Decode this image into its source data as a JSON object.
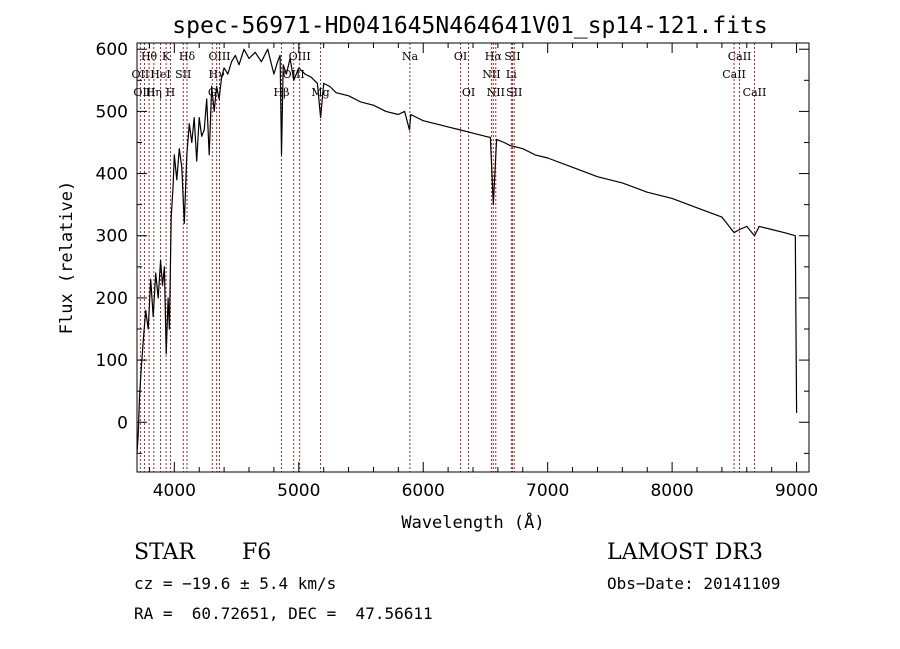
{
  "chart_data": {
    "type": "line",
    "title": "spec-56971-HD041645N464641V01_sp14-121.fits",
    "xlabel": "Wavelength (Å)",
    "ylabel": "Flux (relative)",
    "xlim": [
      3700,
      9100
    ],
    "ylim": [
      -80,
      610
    ],
    "xticks": [
      4000,
      5000,
      6000,
      7000,
      8000,
      9000
    ],
    "yticks": [
      0,
      100,
      200,
      300,
      400,
      500,
      600
    ],
    "grid": false,
    "series": [
      {
        "name": "flux",
        "x": [
          3700,
          3710,
          3720,
          3735,
          3750,
          3770,
          3790,
          3810,
          3830,
          3850,
          3870,
          3890,
          3905,
          3920,
          3935,
          3950,
          3960,
          3975,
          3990,
          4000,
          4020,
          4040,
          4060,
          4080,
          4100,
          4120,
          4140,
          4160,
          4180,
          4200,
          4220,
          4240,
          4260,
          4280,
          4300,
          4320,
          4340,
          4360,
          4380,
          4400,
          4430,
          4460,
          4490,
          4520,
          4560,
          4600,
          4650,
          4700,
          4750,
          4800,
          4830,
          4850,
          4861,
          4875,
          4900,
          4930,
          4960,
          5000,
          5050,
          5100,
          5150,
          5175,
          5200,
          5250,
          5300,
          5400,
          5500,
          5600,
          5700,
          5800,
          5850,
          5890,
          5900,
          5950,
          6000,
          6100,
          6200,
          6300,
          6400,
          6500,
          6540,
          6563,
          6590,
          6650,
          6700,
          6800,
          6900,
          7000,
          7200,
          7400,
          7600,
          7800,
          8000,
          8200,
          8400,
          8498,
          8542,
          8600,
          8662,
          8700,
          8800,
          8900,
          8990,
          9000
        ],
        "y": [
          -50,
          -20,
          40,
          90,
          130,
          180,
          150,
          230,
          170,
          240,
          200,
          260,
          220,
          250,
          110,
          200,
          150,
          330,
          380,
          430,
          390,
          440,
          410,
          320,
          430,
          480,
          450,
          490,
          420,
          490,
          460,
          470,
          520,
          430,
          540,
          500,
          540,
          520,
          555,
          570,
          560,
          580,
          590,
          575,
          600,
          585,
          595,
          580,
          600,
          560,
          580,
          590,
          430,
          575,
          560,
          585,
          550,
          570,
          560,
          555,
          545,
          490,
          545,
          540,
          530,
          525,
          515,
          510,
          500,
          495,
          500,
          470,
          495,
          490,
          485,
          480,
          475,
          470,
          465,
          460,
          458,
          350,
          455,
          450,
          445,
          440,
          430,
          425,
          410,
          395,
          385,
          370,
          360,
          345,
          330,
          305,
          310,
          315,
          300,
          315,
          310,
          305,
          300,
          15
        ]
      }
    ],
    "lines_top": [
      {
        "label": "Hθ",
        "x": 3797
      },
      {
        "label": "K",
        "x": 3934
      },
      {
        "label": "Hδ",
        "x": 4102
      },
      {
        "label": "OIII",
        "x": 4363
      },
      {
        "label": "OIII",
        "x": 5007
      },
      {
        "label": "Na",
        "x": 5893
      },
      {
        "label": "OI",
        "x": 6300
      },
      {
        "label": "Hα",
        "x": 6563
      },
      {
        "label": "SII",
        "x": 6717
      },
      {
        "label": "CaII",
        "x": 8542
      }
    ],
    "lines_mid": [
      {
        "label": "OII",
        "x": 3727
      },
      {
        "label": "HeI",
        "x": 3889
      },
      {
        "label": "SII",
        "x": 4072
      },
      {
        "label": "Hγ",
        "x": 4340
      },
      {
        "label": "OIII",
        "x": 4959
      },
      {
        "label": "NII",
        "x": 6548
      },
      {
        "label": "Li",
        "x": 6708
      },
      {
        "label": "CaII",
        "x": 8498
      }
    ],
    "lines_low": [
      {
        "label": "OIII",
        "x": 3760
      },
      {
        "label": "Hη",
        "x": 3835
      },
      {
        "label": "H",
        "x": 3969
      },
      {
        "label": "G",
        "x": 4305
      },
      {
        "label": "Hβ",
        "x": 4861
      },
      {
        "label": "Mg",
        "x": 5175
      },
      {
        "label": "OI",
        "x": 6364
      },
      {
        "label": "NII",
        "x": 6583
      },
      {
        "label": "SII",
        "x": 6731
      },
      {
        "label": "CaII",
        "x": 8662
      }
    ]
  },
  "info": {
    "object_class": "STAR",
    "subclass": "F6",
    "survey": "LAMOST DR3",
    "cz": "cz = −19.6 ± 5.4 km/s",
    "obs_date": "Obs−Date: 20141109",
    "coords": "RA =  60.72651, DEC =  47.56611"
  },
  "colors": {
    "line_marker": "#b22222",
    "spectrum": "#000000"
  }
}
